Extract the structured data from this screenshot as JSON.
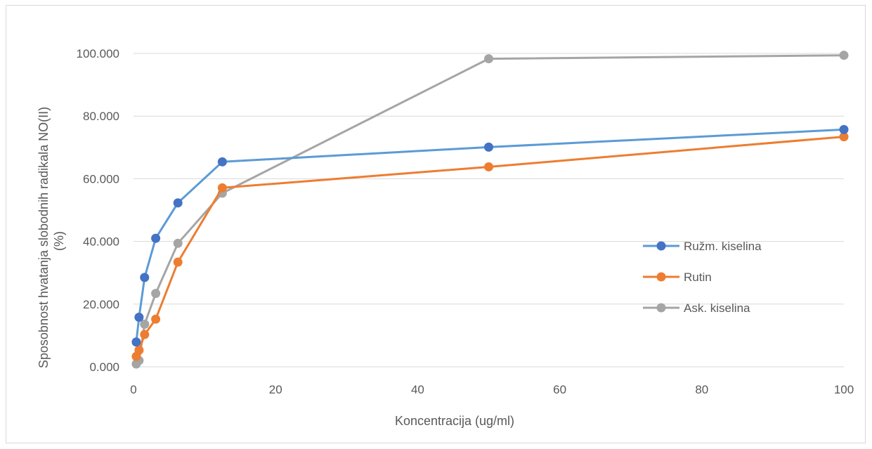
{
  "chart_data": {
    "type": "scatter",
    "title": "",
    "xlabel": "Koncentracija (ug/ml)",
    "ylabel_line1": "Sposobnost hvatanja slobodnih radikala NO(II)",
    "ylabel_line2": "(%)",
    "xlim": [
      0,
      100
    ],
    "ylim": [
      0,
      100
    ],
    "x_ticks": [
      {
        "value": 0,
        "label": "0"
      },
      {
        "value": 20,
        "label": "20"
      },
      {
        "value": 40,
        "label": "40"
      },
      {
        "value": 60,
        "label": "60"
      },
      {
        "value": 80,
        "label": "80"
      },
      {
        "value": 100,
        "label": "100"
      }
    ],
    "y_ticks": [
      {
        "value": 0,
        "label": "0.000"
      },
      {
        "value": 20,
        "label": "20.000"
      },
      {
        "value": 40,
        "label": "40.000"
      },
      {
        "value": 60,
        "label": "60.000"
      },
      {
        "value": 80,
        "label": "80.000"
      },
      {
        "value": 100,
        "label": "100.000"
      }
    ],
    "grid": "horizontal",
    "legend_position": "right",
    "series": [
      {
        "name": "Ružm. kiselina",
        "color": "#4472c4",
        "line_color": "#5b9bd5",
        "x": [
          0.39,
          0.78,
          1.56,
          3.125,
          6.25,
          12.5,
          50,
          100
        ],
        "y": [
          7.9,
          15.8,
          28.5,
          41.0,
          52.3,
          65.4,
          70.1,
          75.7
        ]
      },
      {
        "name": "Rutin",
        "color": "#ed7d31",
        "line_color": "#ed7d31",
        "x": [
          0.39,
          0.78,
          1.56,
          3.125,
          6.25,
          12.5,
          50,
          100
        ],
        "y": [
          3.3,
          5.3,
          10.3,
          15.2,
          33.4,
          57.1,
          63.8,
          73.4
        ]
      },
      {
        "name": "Ask. kiselina",
        "color": "#a5a5a5",
        "line_color": "#a5a5a5",
        "x": [
          0.39,
          0.78,
          1.56,
          3.125,
          6.25,
          12.5,
          50,
          100
        ],
        "y": [
          0.9,
          2.0,
          13.6,
          23.4,
          39.4,
          55.4,
          98.3,
          99.4
        ]
      }
    ]
  }
}
